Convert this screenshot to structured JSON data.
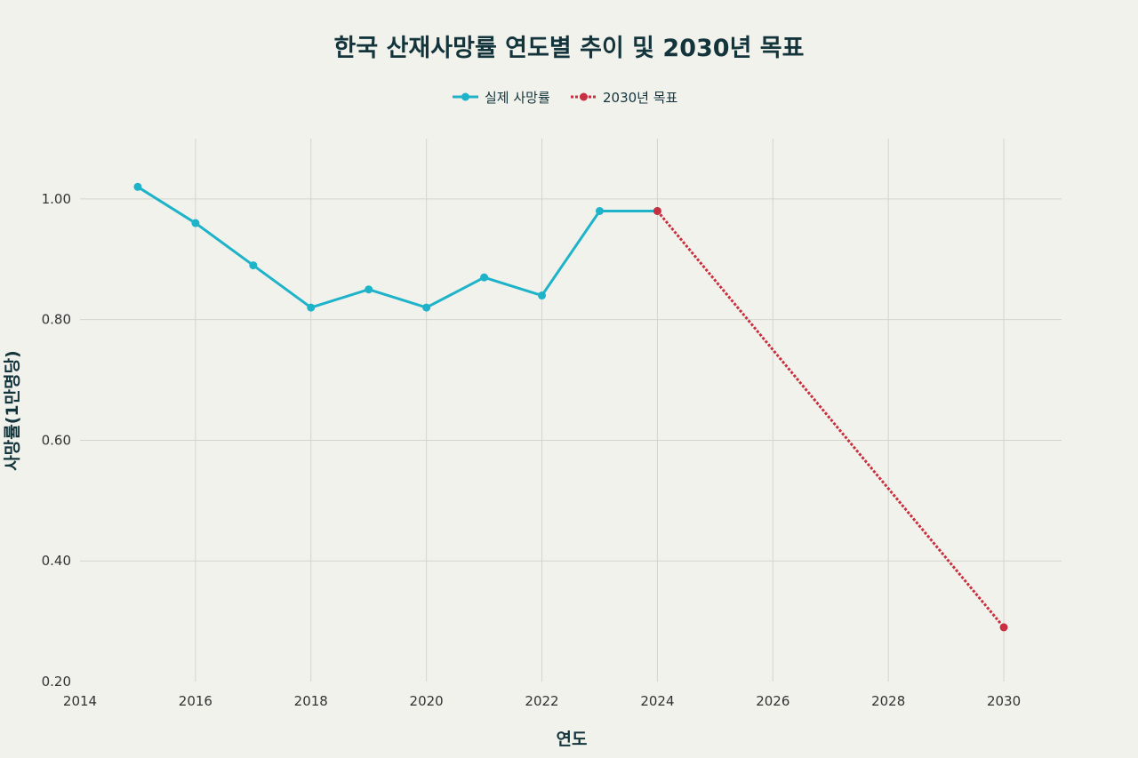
{
  "chart_data": {
    "type": "line",
    "title": "한국 산재사망률 연도별 추이 및 2030년 목표",
    "xlabel": "연도",
    "ylabel": "사망률(1만명당)",
    "xlim": [
      2014,
      2031
    ],
    "ylim": [
      0.2,
      1.1
    ],
    "x_ticks": [
      2014,
      2016,
      2018,
      2020,
      2022,
      2024,
      2026,
      2028,
      2030
    ],
    "x_tick_labels": [
      "2014",
      "2016",
      "2018",
      "2020",
      "2022",
      "2024",
      "2026",
      "2028",
      "2030"
    ],
    "y_ticks": [
      0.2,
      0.4,
      0.6,
      0.8,
      1.0
    ],
    "y_tick_labels": [
      "0.20",
      "0.40",
      "0.60",
      "0.80",
      "1.00"
    ],
    "grid": true,
    "legend_position": "top-center",
    "series": [
      {
        "name": "실제 사망률",
        "color": "#1fb3c9",
        "style": "solid",
        "x": [
          2015,
          2016,
          2017,
          2018,
          2019,
          2020,
          2021,
          2022,
          2023,
          2024
        ],
        "y": [
          1.02,
          0.96,
          0.89,
          0.82,
          0.85,
          0.82,
          0.87,
          0.84,
          0.98,
          0.98
        ]
      },
      {
        "name": "2030년 목표",
        "color": "#c8303f",
        "style": "dotted",
        "x": [
          2024,
          2030
        ],
        "y": [
          0.98,
          0.29
        ]
      }
    ]
  }
}
